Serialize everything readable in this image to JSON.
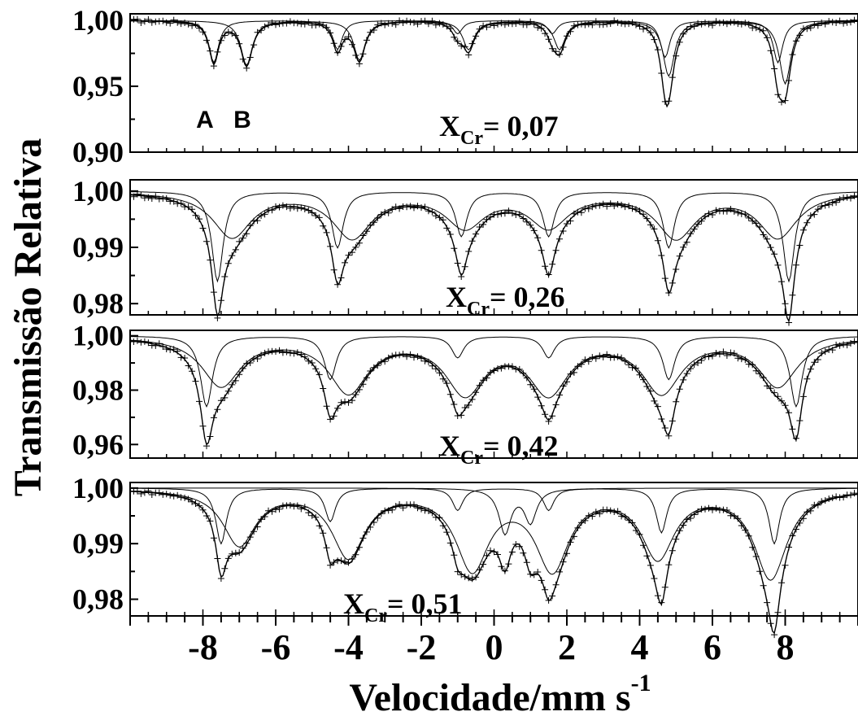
{
  "chart_data": {
    "type": "scatter",
    "ylabel": "Transmissão Relativa",
    "xlabel": {
      "text": "Velocidade/mm s",
      "sup": "-1"
    },
    "xlim": [
      -10,
      10
    ],
    "x_ticks": [
      "-8",
      "-6",
      "-4",
      "-2",
      "0",
      "2",
      "4",
      "6",
      "8"
    ],
    "x_tick_values": [
      -8,
      -6,
      -4,
      -2,
      0,
      2,
      4,
      6,
      8
    ],
    "grid": false,
    "panels": [
      {
        "label_main": "X",
        "label_sub": "Cr",
        "label_value": "= 0,07",
        "ylim": [
          0.9,
          1.005
        ],
        "y_ticks": [
          "1,00",
          "0,95",
          "0,90"
        ],
        "y_tick_values": [
          1.0,
          0.95,
          0.9
        ],
        "peak_labels": [
          "A",
          "B"
        ],
        "components": [
          {
            "positions": [
              -7.7,
              -4.3,
              -1.0,
              1.6,
              4.7,
              7.8
            ],
            "depths": [
              0.032,
              0.022,
              0.01,
              0.01,
              0.028,
              0.032
            ],
            "width": 0.32
          },
          {
            "positions": [
              -6.8,
              -3.7,
              -0.7,
              1.8,
              4.8,
              8.0
            ],
            "depths": [
              0.034,
              0.03,
              0.022,
              0.022,
              0.042,
              0.048
            ],
            "width": 0.38
          }
        ]
      },
      {
        "label_main": "X",
        "label_sub": "Cr",
        "label_value": "= 0,26",
        "ylim": [
          0.978,
          1.002
        ],
        "y_ticks": [
          "1,00",
          "0,99",
          "0,98"
        ],
        "y_tick_values": [
          1.0,
          0.99,
          0.98
        ],
        "peak_labels": [],
        "components": [
          {
            "positions": [
              -7.6,
              -4.3,
              -0.9,
              1.5,
              4.8,
              8.1
            ],
            "depths": [
              0.016,
              0.01,
              0.008,
              0.008,
              0.01,
              0.016
            ],
            "width": 0.38
          },
          {
            "positions": [
              -7.2,
              -3.9,
              -0.8,
              1.5,
              5.0,
              7.8
            ],
            "depths": [
              0.008,
              0.008,
              0.006,
              0.006,
              0.008,
              0.008
            ],
            "width": 1.3
          }
        ]
      },
      {
        "label_main": "X",
        "label_sub": "Cr",
        "label_value": "= 0,42",
        "ylim": [
          0.955,
          1.002
        ],
        "y_ticks": [
          "1,00",
          "0,98",
          "0,96"
        ],
        "y_tick_values": [
          1.0,
          0.98,
          0.96
        ],
        "peak_labels": [],
        "components": [
          {
            "positions": [
              -7.9,
              -4.5,
              -1.0,
              1.5,
              4.8,
              8.3
            ],
            "depths": [
              0.026,
              0.016,
              0.008,
              0.008,
              0.016,
              0.026
            ],
            "width": 0.4
          },
          {
            "positions": [
              -7.5,
              -4.0,
              -0.8,
              1.5,
              4.6,
              7.8
            ],
            "depths": [
              0.018,
              0.02,
              0.02,
              0.02,
              0.02,
              0.018
            ],
            "width": 1.3
          }
        ]
      },
      {
        "label_main": "X",
        "label_sub": "Cr",
        "label_value": "= 0,51",
        "ylim": [
          0.977,
          1.001
        ],
        "y_ticks": [
          "1,00",
          "0,99",
          "0,98"
        ],
        "y_tick_values": [
          1.0,
          0.99,
          0.98
        ],
        "peak_labels": [],
        "components": [
          {
            "positions": [
              -7.5,
              -4.5,
              -1.0,
              1.5,
              4.6,
              7.7
            ],
            "depths": [
              0.01,
              0.006,
              0.004,
              0.004,
              0.008,
              0.01
            ],
            "width": 0.35
          },
          {
            "positions": [
              -7.0,
              -4.0,
              -0.6,
              1.6,
              4.5,
              7.6
            ],
            "depths": [
              0.01,
              0.012,
              0.014,
              0.014,
              0.012,
              0.016
            ],
            "width": 1.1
          },
          {
            "positions": [
              0.3,
              1.0
            ],
            "depths": [
              0.008,
              0.006
            ],
            "width": 0.4
          }
        ]
      }
    ]
  }
}
